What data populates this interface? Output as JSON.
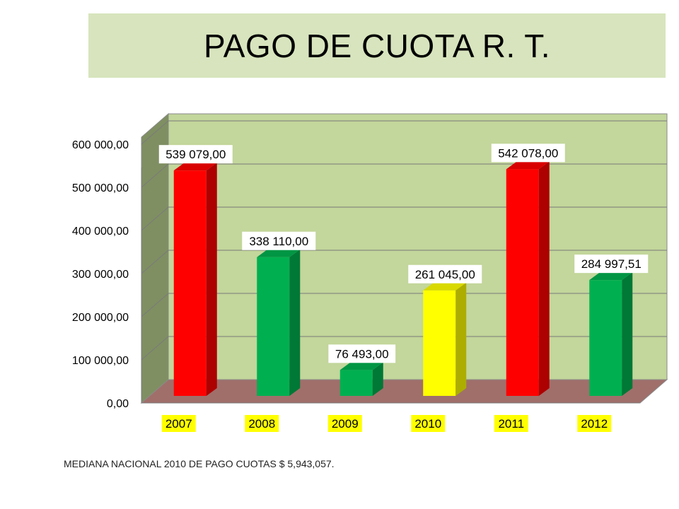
{
  "title": "PAGO DE CUOTA  R. T.",
  "footnote": "MEDIANA NACIONAL 2010 DE PAGO CUOTAS $ 5,943,057.",
  "colors": {
    "red": "#ff0000",
    "green": "#00b050",
    "yellow": "#ffff00",
    "wall": "#c3d69b",
    "side_wall": "#7f8f62",
    "floor": "#a06f6a",
    "title_bg": "#d7e4bd",
    "year_highlight": "#ffff00"
  },
  "chart_data": {
    "type": "bar",
    "style": "3d-column",
    "categories": [
      "2007",
      "2008",
      "2009",
      "2010",
      "2011",
      "2012"
    ],
    "values": [
      539079.0,
      338110.0,
      76493.0,
      261045.0,
      542078.0,
      284997.51
    ],
    "data_labels": [
      "539 079,00",
      "338 110,00",
      "76 493,00",
      "261 045,00",
      "542 078,00",
      "284 997,51"
    ],
    "bar_colors": [
      "red",
      "green",
      "green",
      "yellow",
      "red",
      "green"
    ],
    "ylim": [
      0,
      600000
    ],
    "yticks": [
      0,
      100000,
      200000,
      300000,
      400000,
      500000,
      600000
    ],
    "ytick_labels": [
      "0,00",
      "100 000,00",
      "200 000,00",
      "300 000,00",
      "400 000,00",
      "500 000,00",
      "600 000,00"
    ],
    "grid": true,
    "legend": "none"
  }
}
